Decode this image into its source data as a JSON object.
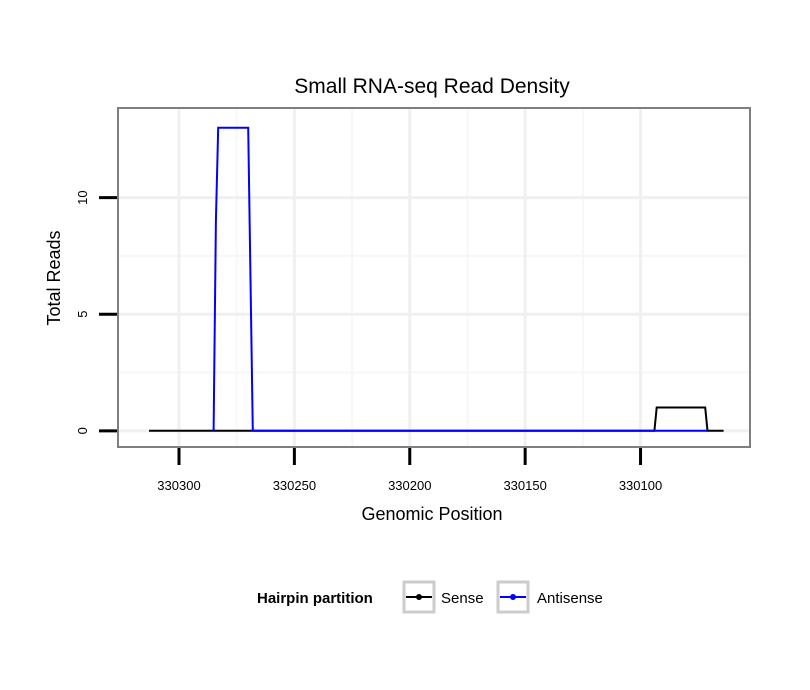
{
  "chart_data": {
    "type": "line",
    "title": "Small RNA-seq Read Density",
    "xlabel": "Genomic Position",
    "ylabel": "Total Reads",
    "x_reversed": true,
    "xlim": [
      330326,
      330053
    ],
    "ylim": [
      -0.65,
      13.8
    ],
    "x_ticks": [
      330300,
      330250,
      330200,
      330150,
      330100
    ],
    "x_tick_labels": [
      "330300",
      "330250",
      "330200",
      "330150",
      "330100"
    ],
    "y_ticks": [
      0,
      5,
      10
    ],
    "y_tick_labels": [
      "0",
      "5",
      "10"
    ],
    "grid": true,
    "legend": {
      "title": "Hairpin partition",
      "position": "bottom",
      "entries": [
        {
          "name": "Sense",
          "color": "#000000"
        },
        {
          "name": "Antisense",
          "color": "#0000ff"
        }
      ]
    },
    "series": [
      {
        "name": "Sense",
        "color": "#000000",
        "x": [
          330313,
          330094,
          330093,
          330072,
          330071,
          330064
        ],
        "y": [
          0,
          0,
          1,
          1,
          0,
          0
        ]
      },
      {
        "name": "Antisense",
        "color": "#0000ff",
        "x": [
          330285,
          330284,
          330283,
          330270,
          330268,
          330092,
          330071
        ],
        "y": [
          0,
          9,
          13,
          13,
          0,
          0,
          0
        ]
      }
    ]
  }
}
